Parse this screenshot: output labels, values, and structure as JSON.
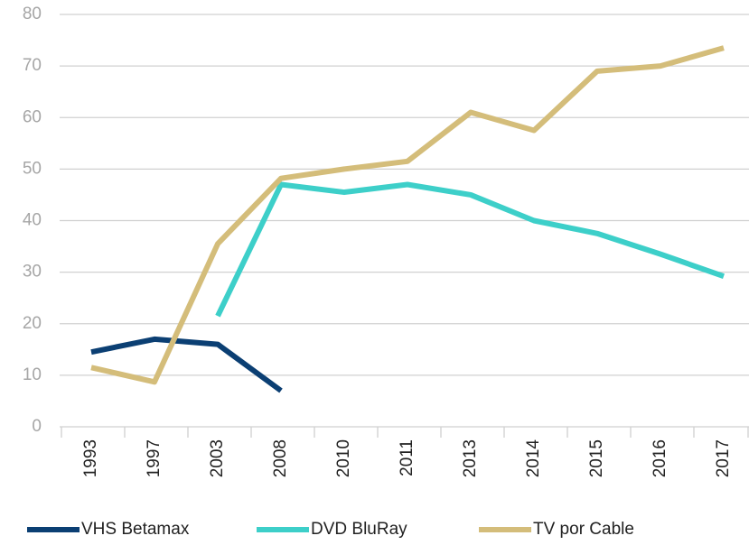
{
  "chart_data": {
    "type": "line",
    "categories": [
      "1993",
      "1997",
      "2003",
      "2008",
      "2010",
      "2011",
      "2013",
      "2014",
      "2015",
      "2016",
      "2017"
    ],
    "series": [
      {
        "name": "VHS Betamax",
        "color": "#0b3f73",
        "values": [
          14.5,
          17,
          16,
          7,
          null,
          null,
          null,
          null,
          null,
          null,
          null
        ]
      },
      {
        "name": "DVD BluRay",
        "color": "#3dcfc9",
        "values": [
          null,
          null,
          21.5,
          47,
          45.5,
          47,
          45,
          40,
          37.5,
          33.5,
          29.2
        ]
      },
      {
        "name": "TV por Cable",
        "color": "#d4bd7a",
        "values": [
          11.5,
          8.7,
          35.5,
          48.2,
          50,
          51.5,
          61,
          57.5,
          69,
          70,
          73.5
        ]
      }
    ],
    "ylim": [
      0,
      80
    ],
    "yticks": [
      0,
      10,
      20,
      30,
      40,
      50,
      60,
      70,
      80
    ],
    "grid": true,
    "legend": "bottom"
  }
}
